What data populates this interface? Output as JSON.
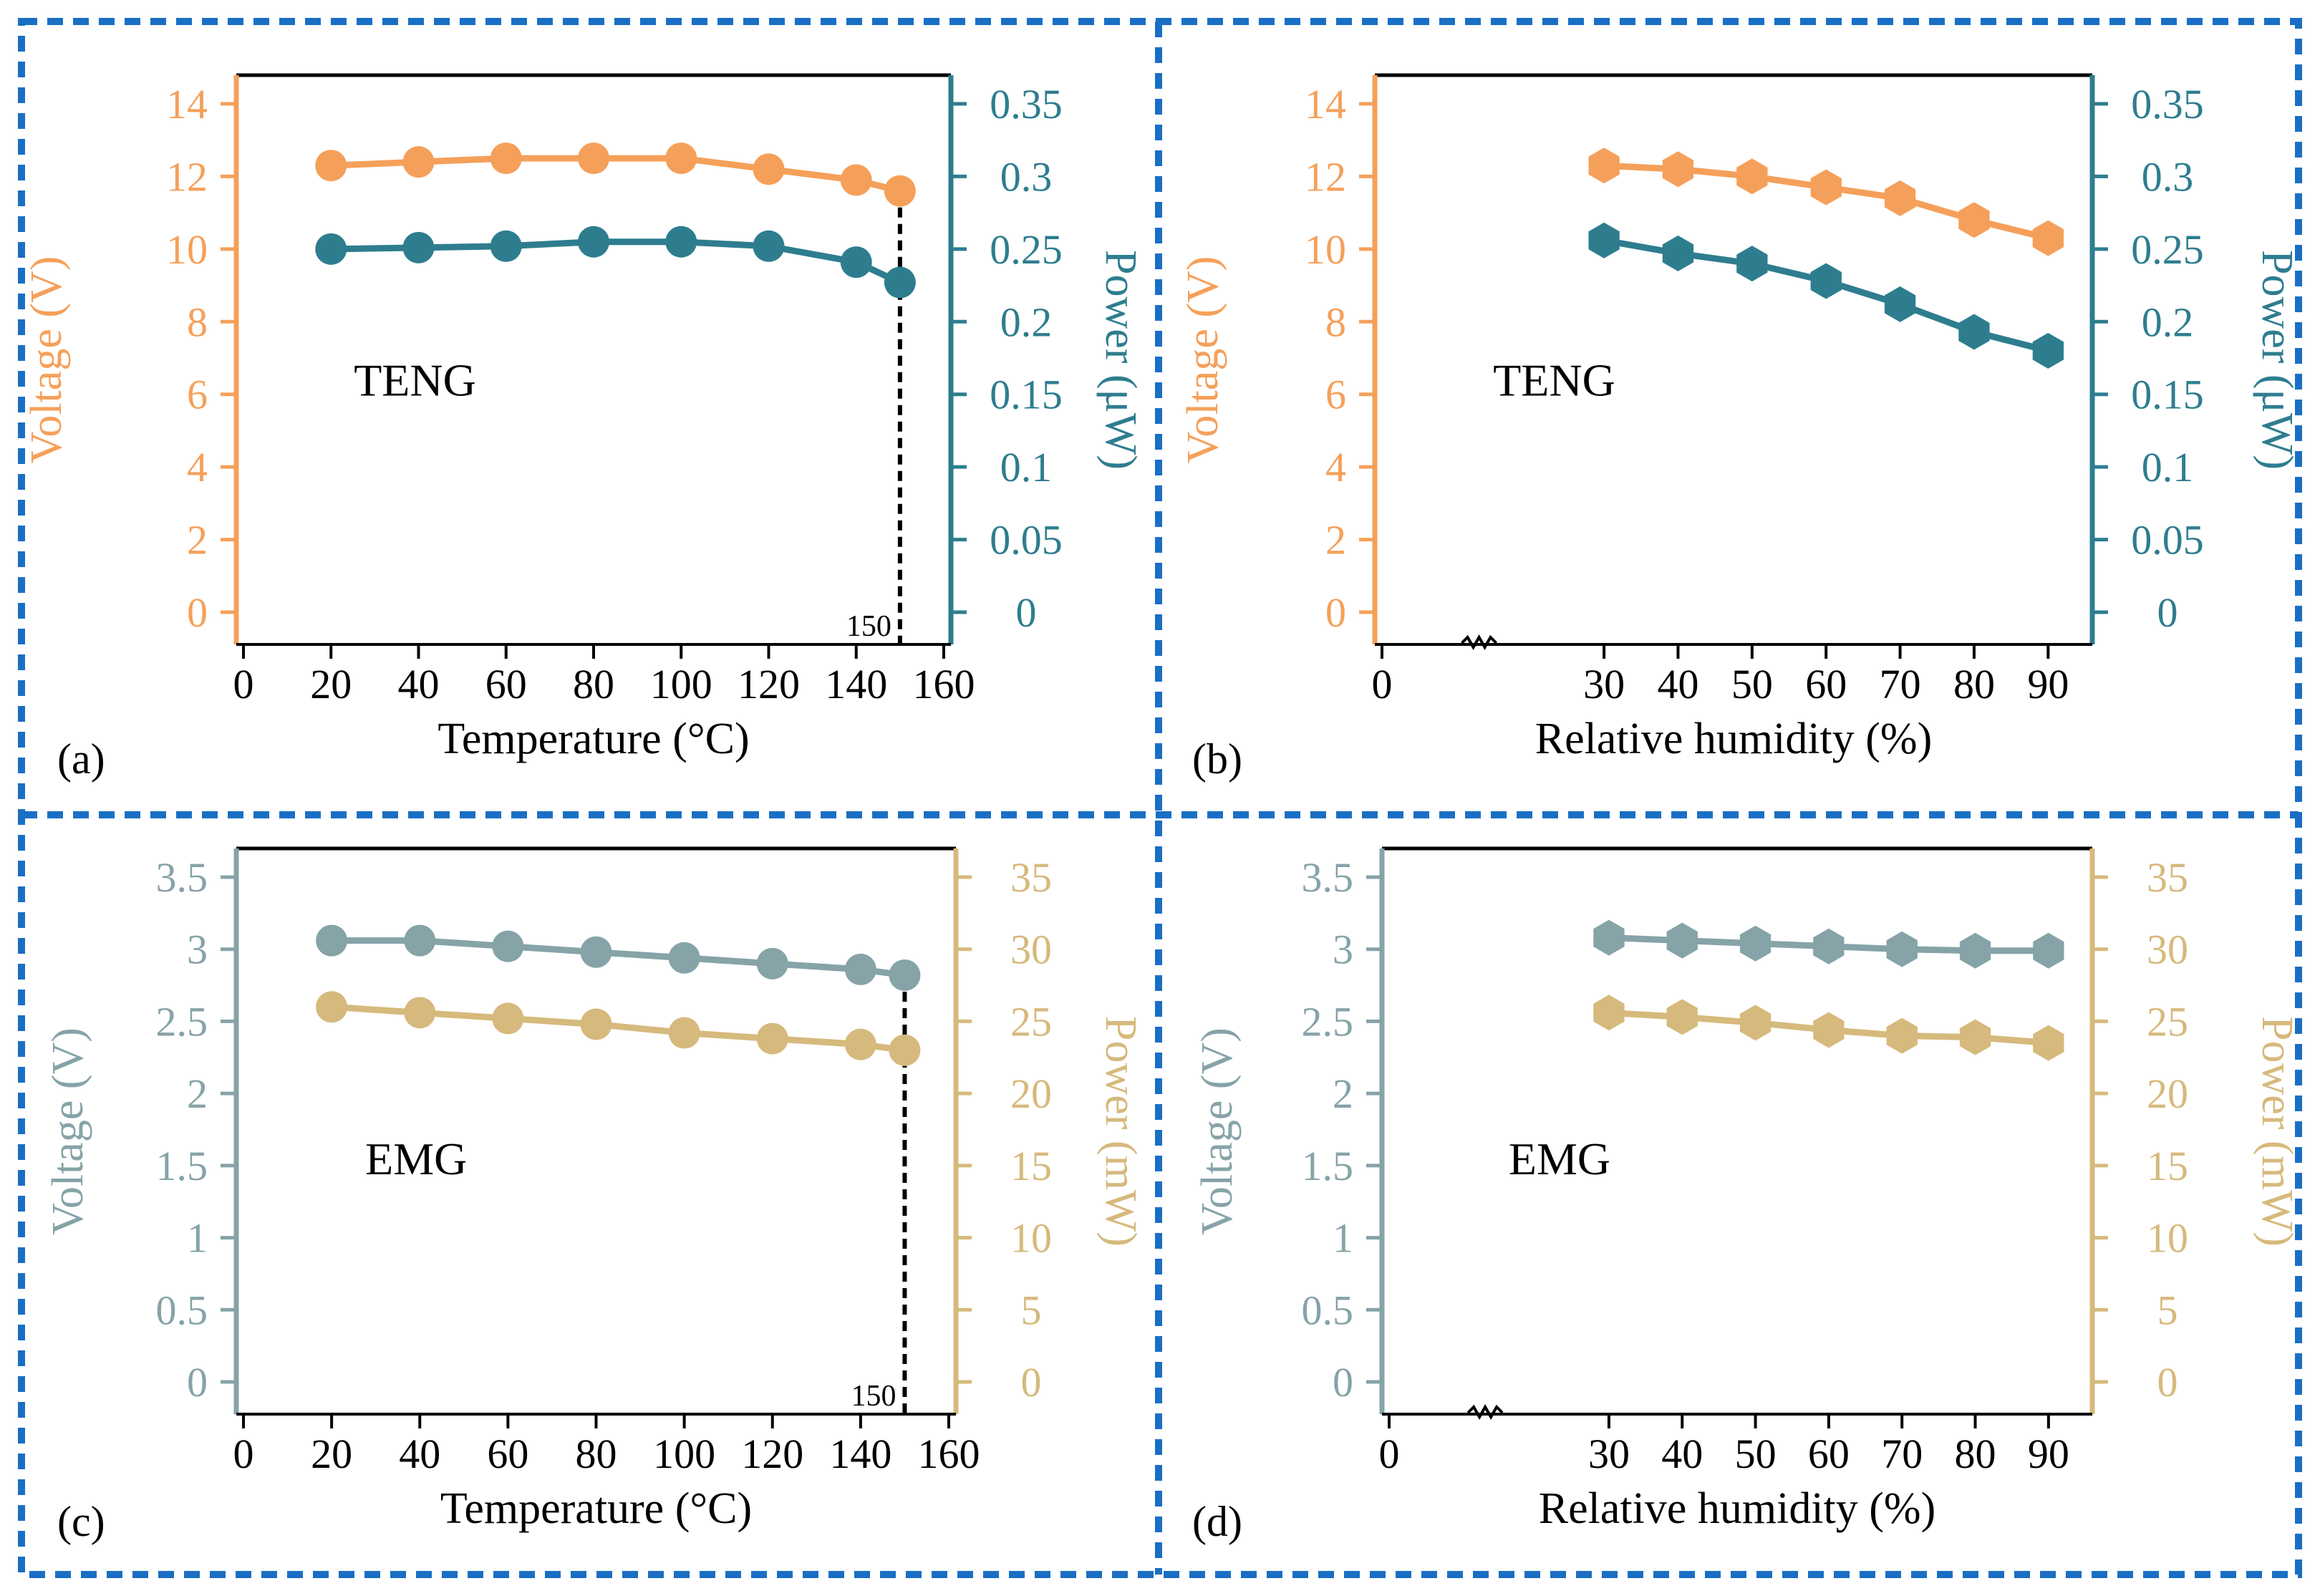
{
  "colors": {
    "orange": "#F5A05A",
    "teal": "#2E7D8F",
    "grayteal": "#86A3A8",
    "tan": "#D6B97C",
    "frame": "#1A6FC4",
    "black": "#000000"
  },
  "chart_data": [
    {
      "type": "line",
      "panel_label": "(a)",
      "annotation": "TENG",
      "xlabel": "Temperature (°C)",
      "ylabel": "Voltage (V)",
      "y2label": "Power (μW)",
      "xlim": [
        0,
        160
      ],
      "ylim": [
        0,
        14
      ],
      "y2lim": [
        0,
        0.35
      ],
      "xticks": [
        "0",
        "20",
        "40",
        "60",
        "80",
        "100",
        "120",
        "140",
        "160"
      ],
      "yticks": [
        "0",
        "2",
        "4",
        "6",
        "8",
        "10",
        "12",
        "14"
      ],
      "y2ticks": [
        "0",
        "0.05",
        "0.1",
        "0.15",
        "0.2",
        "0.25",
        "0.3",
        "0.35"
      ],
      "marker": "circle",
      "x": [
        20,
        40,
        60,
        80,
        100,
        120,
        140,
        150
      ],
      "series": [
        {
          "name": "Voltage",
          "axis": "left",
          "color": "orange",
          "values": [
            12.3,
            12.4,
            12.5,
            12.5,
            12.5,
            12.2,
            11.9,
            11.6
          ]
        },
        {
          "name": "Power",
          "axis": "right",
          "color": "teal",
          "values": [
            0.25,
            0.251,
            0.252,
            0.255,
            0.255,
            0.252,
            0.241,
            0.227
          ]
        }
      ],
      "refline": {
        "x": 150,
        "label": "150"
      },
      "left_color": "orange",
      "right_color": "teal",
      "break_marks": false
    },
    {
      "type": "line",
      "panel_label": "(b)",
      "annotation": "TENG",
      "xlabel": "Relative humidity (%)",
      "ylabel": "Voltage (V)",
      "y2label": "Power (μW)",
      "xlim": [
        0,
        95
      ],
      "ylim": [
        0,
        14
      ],
      "y2lim": [
        0,
        0.35
      ],
      "xticks": [
        "0",
        "30",
        "40",
        "50",
        "60",
        "70",
        "80",
        "90"
      ],
      "yticks": [
        "0",
        "2",
        "4",
        "6",
        "8",
        "10",
        "12",
        "14"
      ],
      "y2ticks": [
        "0",
        "0.05",
        "0.1",
        "0.15",
        "0.2",
        "0.25",
        "0.3",
        "0.35"
      ],
      "marker": "hexagon",
      "x": [
        30,
        40,
        50,
        60,
        70,
        80,
        90
      ],
      "series": [
        {
          "name": "Voltage",
          "axis": "left",
          "color": "orange",
          "values": [
            12.3,
            12.2,
            12.0,
            11.7,
            11.4,
            10.8,
            10.3
          ]
        },
        {
          "name": "Power",
          "axis": "right",
          "color": "teal",
          "values": [
            0.256,
            0.247,
            0.24,
            0.228,
            0.212,
            0.193,
            0.18
          ]
        }
      ],
      "left_color": "orange",
      "right_color": "teal",
      "break_marks": true
    },
    {
      "type": "line",
      "panel_label": "(c)",
      "annotation": "EMG",
      "xlabel": "Temperature (°C)",
      "ylabel": "Voltage (V)",
      "y2label": "Power (mW)",
      "xlim": [
        0,
        160
      ],
      "ylim": [
        0,
        3.5
      ],
      "y2lim": [
        0,
        35
      ],
      "xticks": [
        "0",
        "20",
        "40",
        "60",
        "80",
        "100",
        "120",
        "140",
        "160"
      ],
      "yticks": [
        "0",
        "0.5",
        "1",
        "1.5",
        "2",
        "2.5",
        "3",
        "3.5"
      ],
      "y2ticks": [
        "0",
        "5",
        "10",
        "15",
        "20",
        "25",
        "30",
        "35"
      ],
      "marker": "circle",
      "x": [
        20,
        40,
        60,
        80,
        100,
        120,
        140,
        150
      ],
      "series": [
        {
          "name": "Voltage",
          "axis": "left",
          "color": "grayteal",
          "values": [
            3.06,
            3.06,
            3.02,
            2.98,
            2.94,
            2.9,
            2.86,
            2.82
          ]
        },
        {
          "name": "Power",
          "axis": "right",
          "color": "tan",
          "values": [
            26.0,
            25.6,
            25.2,
            24.8,
            24.2,
            23.8,
            23.4,
            23.0
          ]
        }
      ],
      "refline": {
        "x": 150,
        "label": "150"
      },
      "left_color": "grayteal",
      "right_color": "tan",
      "break_marks": false
    },
    {
      "type": "line",
      "panel_label": "(d)",
      "annotation": "EMG",
      "xlabel": "Relative humidity (%)",
      "ylabel": "Voltage (V)",
      "y2label": "Power (mW)",
      "xlim": [
        0,
        95
      ],
      "ylim": [
        0,
        3.5
      ],
      "y2lim": [
        0,
        35
      ],
      "xticks": [
        "0",
        "30",
        "40",
        "50",
        "60",
        "70",
        "80",
        "90"
      ],
      "yticks": [
        "0",
        "0.5",
        "1",
        "1.5",
        "2",
        "2.5",
        "3",
        "3.5"
      ],
      "y2ticks": [
        "0",
        "5",
        "10",
        "15",
        "20",
        "25",
        "30",
        "35"
      ],
      "marker": "hexagon",
      "x": [
        30,
        40,
        50,
        60,
        70,
        80,
        90
      ],
      "series": [
        {
          "name": "Voltage",
          "axis": "left",
          "color": "grayteal",
          "values": [
            3.08,
            3.06,
            3.04,
            3.02,
            3.0,
            2.99,
            2.99
          ]
        },
        {
          "name": "Power",
          "axis": "right",
          "color": "tan",
          "values": [
            25.6,
            25.3,
            24.9,
            24.4,
            24.0,
            23.9,
            23.5
          ]
        }
      ],
      "left_color": "grayteal",
      "right_color": "tan",
      "break_marks": true
    }
  ]
}
